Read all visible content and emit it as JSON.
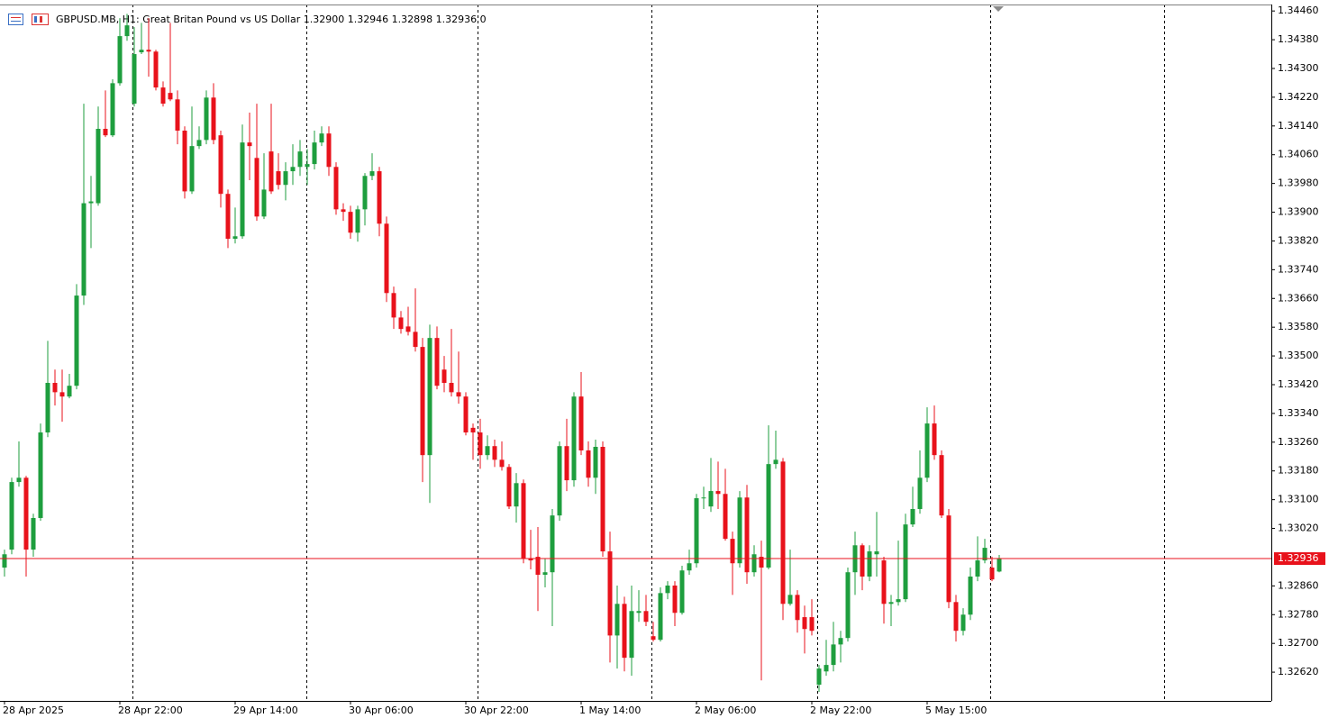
{
  "chart_data": {
    "type": "candlestick",
    "title": "GBPUSD.MB, H1:  Great Britan Pound vs US Dollar  1.32900 1.32946 1.32898 1.32936  0",
    "categories": [
      "28 Apr 2025",
      null,
      null,
      null,
      null,
      null,
      null,
      null,
      null,
      null,
      null,
      null,
      null,
      null,
      null,
      null,
      "28 Apr 22:00",
      null,
      null,
      null,
      null,
      null,
      null,
      null,
      null,
      null,
      null,
      null,
      null,
      null,
      null,
      null,
      "29 Apr 14:00",
      null,
      null,
      null,
      null,
      null,
      null,
      null,
      null,
      null,
      null,
      null,
      null,
      null,
      null,
      null,
      "30 Apr 06:00",
      null,
      null,
      null,
      null,
      null,
      null,
      null,
      null,
      null,
      null,
      null,
      null,
      null,
      null,
      null,
      "30 Apr 22:00",
      null,
      null,
      null,
      null,
      null,
      null,
      null,
      null,
      null,
      null,
      null,
      null,
      null,
      null,
      null,
      "1 May 14:00",
      null,
      null,
      null,
      null,
      null,
      null,
      null,
      null,
      null,
      null,
      null,
      null,
      null,
      null,
      null,
      "2 May 06:00",
      null,
      null,
      null,
      null,
      null,
      null,
      null,
      null,
      null,
      null,
      null,
      null,
      null,
      null,
      null,
      "2 May 22:00",
      null,
      null,
      null,
      null,
      null,
      null,
      null,
      null,
      null,
      null,
      null,
      null,
      null,
      null,
      null,
      "5 May 15:00",
      null,
      null,
      null,
      null,
      null,
      null,
      null,
      null,
      null,
      null
    ],
    "open": [
      1.32911,
      1.32961,
      1.33149,
      1.33161,
      1.32961,
      1.33049,
      1.33287,
      1.33425,
      1.33399,
      1.33387,
      1.33417,
      1.33668,
      1.33925,
      1.33925,
      1.34132,
      1.34114,
      1.34259,
      1.3439,
      1.34202,
      1.34345,
      1.34352,
      1.34347,
      1.34247,
      1.34232,
      1.34214,
      1.34127,
      1.33958,
      1.34084,
      1.34101,
      1.34219,
      1.34114,
      1.33951,
      1.33826,
      1.33833,
      1.34094,
      1.34051,
      1.33888,
      1.34069,
      1.34014,
      1.33976,
      1.34014,
      1.34026,
      1.34026,
      1.34034,
      1.34094,
      1.34119,
      1.34026,
      1.33908,
      1.33901,
      1.33843,
      1.33908,
      1.34001,
      1.34014,
      1.33868,
      1.33675,
      1.33607,
      1.33582,
      1.33567,
      1.33525,
      1.33224,
      1.3355,
      1.33462,
      1.33425,
      1.33399,
      1.33387,
      1.333,
      1.33287,
      1.33224,
      1.33249,
      1.33211,
      1.33191,
      1.33081,
      1.33146,
      1.32936,
      1.32941,
      1.32891,
      1.32898,
      1.33056,
      1.33249,
      1.33154,
      1.33387,
      1.33237,
      1.33161,
      1.33247,
      1.32956,
      1.32722,
      1.3281,
      1.3266,
      1.32785,
      1.3279,
      1.3272,
      1.3271,
      1.3284,
      1.32861,
      1.32785,
      1.32903,
      1.32923,
      1.33104,
      1.33081,
      1.33124,
      1.33116,
      1.32991,
      1.32923,
      1.33106,
      1.32898,
      1.32941,
      1.32911,
      1.33199,
      1.33206,
      1.3281,
      1.32835,
      1.32773,
      1.32773,
      1.32585,
      1.32622,
      1.3264,
      1.32697,
      1.32715,
      1.32898,
      1.32973,
      1.32886,
      1.32948,
      1.32931,
      1.3281,
      1.32815,
      1.32823,
      1.33031,
      1.33074,
      1.33161,
      1.33312,
      1.33224,
      1.33056,
      1.32815,
      1.32735,
      1.3278,
      1.32886,
      1.32931,
      1.32911,
      1.329
    ],
    "high": [
      1.32961,
      1.33161,
      1.33262,
      1.33166,
      1.33061,
      1.33312,
      1.33542,
      1.33462,
      1.33462,
      1.3345,
      1.337,
      1.34202,
      1.34001,
      1.34194,
      1.34239,
      1.3427,
      1.3444,
      1.34452,
      1.34415,
      1.34427,
      1.3444,
      1.34352,
      1.34264,
      1.34427,
      1.34239,
      1.34139,
      1.34194,
      1.34139,
      1.34239,
      1.34259,
      1.34127,
      1.33963,
      1.33913,
      1.34144,
      1.34177,
      1.34202,
      1.34064,
      1.34202,
      1.34064,
      1.34039,
      1.34089,
      1.34101,
      1.34076,
      1.34127,
      1.34139,
      1.34139,
      1.34039,
      1.33925,
      1.33918,
      1.33918,
      1.34009,
      1.34064,
      1.34026,
      1.33888,
      1.33693,
      1.33625,
      1.33637,
      1.33688,
      1.3355,
      1.33587,
      1.33582,
      1.335,
      1.33575,
      1.33512,
      1.33399,
      1.33312,
      1.33325,
      1.33279,
      1.33267,
      1.33262,
      1.33199,
      1.33174,
      1.33156,
      1.33016,
      1.33024,
      1.32936,
      1.33074,
      1.33262,
      1.33325,
      1.33399,
      1.33455,
      1.33262,
      1.33267,
      1.33262,
      1.33011,
      1.32861,
      1.3283,
      1.32861,
      1.32848,
      1.32835,
      1.3276,
      1.32856,
      1.32873,
      1.32873,
      1.32916,
      1.32961,
      1.33116,
      1.33136,
      1.33216,
      1.33206,
      1.33186,
      1.33011,
      1.33124,
      1.33141,
      1.32973,
      1.32986,
      1.33307,
      1.33292,
      1.33216,
      1.32961,
      1.32848,
      1.32805,
      1.32823,
      1.3264,
      1.3271,
      1.3276,
      1.32735,
      1.32911,
      1.33011,
      1.32978,
      1.32973,
      1.33066,
      1.32941,
      1.32835,
      1.32986,
      1.33061,
      1.33136,
      1.33237,
      1.33357,
      1.33362,
      1.33237,
      1.33074,
      1.32835,
      1.32798,
      1.32911,
      1.32998,
      1.32991,
      1.32941,
      1.32946
    ],
    "low": [
      1.32886,
      1.32948,
      1.33136,
      1.32886,
      1.32941,
      1.33041,
      1.33274,
      1.33362,
      1.33317,
      1.33382,
      1.33407,
      1.33642,
      1.338,
      1.33918,
      1.34109,
      1.34109,
      1.34252,
      1.34377,
      1.34194,
      1.3434,
      1.34277,
      1.34239,
      1.34194,
      1.34209,
      1.34089,
      1.33938,
      1.33951,
      1.34076,
      1.34089,
      1.34089,
      1.33913,
      1.338,
      1.33813,
      1.33826,
      1.33989,
      1.33876,
      1.33881,
      1.33951,
      1.33963,
      1.33933,
      1.33976,
      1.34001,
      1.33976,
      1.34019,
      1.34084,
      1.34001,
      1.33893,
      1.33876,
      1.33826,
      1.33818,
      1.33863,
      1.33989,
      1.33833,
      1.3365,
      1.33575,
      1.33562,
      1.33557,
      1.33512,
      1.33149,
      1.33091,
      1.33407,
      1.33399,
      1.33387,
      1.33367,
      1.33279,
      1.33211,
      1.33186,
      1.33211,
      1.33191,
      1.33181,
      1.33074,
      1.33036,
      1.32923,
      1.32906,
      1.3279,
      1.32856,
      1.32748,
      1.33041,
      1.33124,
      1.33136,
      1.33224,
      1.33136,
      1.33116,
      1.32941,
      1.32647,
      1.3263,
      1.32622,
      1.3261,
      1.3276,
      1.32748,
      1.32705,
      1.32705,
      1.32823,
      1.32748,
      1.3278,
      1.32891,
      1.32911,
      1.33074,
      1.33066,
      1.33074,
      1.32986,
      1.32835,
      1.32911,
      1.32866,
      1.32886,
      1.32597,
      1.32906,
      1.33186,
      1.32765,
      1.32805,
      1.3273,
      1.32672,
      1.32722,
      1.32565,
      1.3261,
      1.32622,
      1.32647,
      1.32705,
      1.32835,
      1.32848,
      1.32873,
      1.32886,
      1.32755,
      1.32748,
      1.32805,
      1.32815,
      1.33024,
      1.33061,
      1.33149,
      1.33211,
      1.33049,
      1.32798,
      1.32705,
      1.32722,
      1.32765,
      1.32873,
      1.32923,
      1.32873,
      1.32898
    ],
    "close": [
      1.32948,
      1.33149,
      1.33161,
      1.32961,
      1.33049,
      1.33287,
      1.33425,
      1.33399,
      1.33387,
      1.33417,
      1.33668,
      1.33925,
      1.3393,
      1.34132,
      1.34114,
      1.34259,
      1.3439,
      1.3442,
      1.3434,
      1.34352,
      1.34347,
      1.34247,
      1.34202,
      1.34214,
      1.34127,
      1.33958,
      1.34084,
      1.34101,
      1.34219,
      1.34101,
      1.33951,
      1.33826,
      1.33833,
      1.34094,
      1.34084,
      1.33888,
      1.33963,
      1.33958,
      1.33976,
      1.34014,
      1.34026,
      1.34069,
      1.34034,
      1.34094,
      1.34119,
      1.34026,
      1.33908,
      1.33901,
      1.33843,
      1.33908,
      1.34001,
      1.34014,
      1.33868,
      1.33675,
      1.33607,
      1.33575,
      1.33567,
      1.33525,
      1.33224,
      1.3355,
      1.33417,
      1.33425,
      1.33399,
      1.33387,
      1.33287,
      1.33287,
      1.33224,
      1.33249,
      1.33211,
      1.33191,
      1.33081,
      1.33146,
      1.32936,
      1.32931,
      1.32891,
      1.32898,
      1.33056,
      1.33249,
      1.33154,
      1.33387,
      1.33237,
      1.33161,
      1.33247,
      1.32956,
      1.32722,
      1.3281,
      1.3266,
      1.3279,
      1.3279,
      1.3276,
      1.3271,
      1.3284,
      1.32861,
      1.32785,
      1.32903,
      1.32923,
      1.33104,
      1.33106,
      1.33124,
      1.33116,
      1.32991,
      1.32923,
      1.33106,
      1.32898,
      1.32948,
      1.32911,
      1.33199,
      1.33211,
      1.3281,
      1.32835,
      1.32765,
      1.3274,
      1.32735,
      1.3263,
      1.3264,
      1.32697,
      1.32715,
      1.32898,
      1.32973,
      1.32886,
      1.32956,
      1.32956,
      1.3281,
      1.32815,
      1.32823,
      1.33031,
      1.33074,
      1.33161,
      1.33312,
      1.33224,
      1.33056,
      1.32815,
      1.32735,
      1.3278,
      1.32886,
      1.32931,
      1.32966,
      1.32878,
      1.32936
    ],
    "up_color": "#1e9e3e",
    "down_color": "#e8121b",
    "current_price": 1.32936,
    "current_price_color": "#e8121b",
    "ylim": [
      1.3254,
      1.34478
    ],
    "yticks": [
      {
        "value": 1.3446,
        "label": "1.34460"
      },
      {
        "value": 1.3438,
        "label": "1.34380"
      },
      {
        "value": 1.343,
        "label": "1.34300"
      },
      {
        "value": 1.3422,
        "label": "1.34220"
      },
      {
        "value": 1.3414,
        "label": "1.34140"
      },
      {
        "value": 1.3406,
        "label": "1.34060"
      },
      {
        "value": 1.3398,
        "label": "1.33980"
      },
      {
        "value": 1.339,
        "label": "1.33900"
      },
      {
        "value": 1.3382,
        "label": "1.33820"
      },
      {
        "value": 1.3374,
        "label": "1.33740"
      },
      {
        "value": 1.3366,
        "label": "1.33660"
      },
      {
        "value": 1.3358,
        "label": "1.33580"
      },
      {
        "value": 1.335,
        "label": "1.33500"
      },
      {
        "value": 1.3342,
        "label": "1.33420"
      },
      {
        "value": 1.3334,
        "label": "1.33340"
      },
      {
        "value": 1.3326,
        "label": "1.33260"
      },
      {
        "value": 1.3318,
        "label": "1.33180"
      },
      {
        "value": 1.331,
        "label": "1.33100"
      },
      {
        "value": 1.3302,
        "label": "1.33020"
      },
      {
        "value": 1.3286,
        "label": "1.32860"
      },
      {
        "value": 1.3278,
        "label": "1.32780"
      },
      {
        "value": 1.327,
        "label": "1.32700"
      },
      {
        "value": 1.3262,
        "label": "1.32620"
      }
    ],
    "grid": false
  }
}
